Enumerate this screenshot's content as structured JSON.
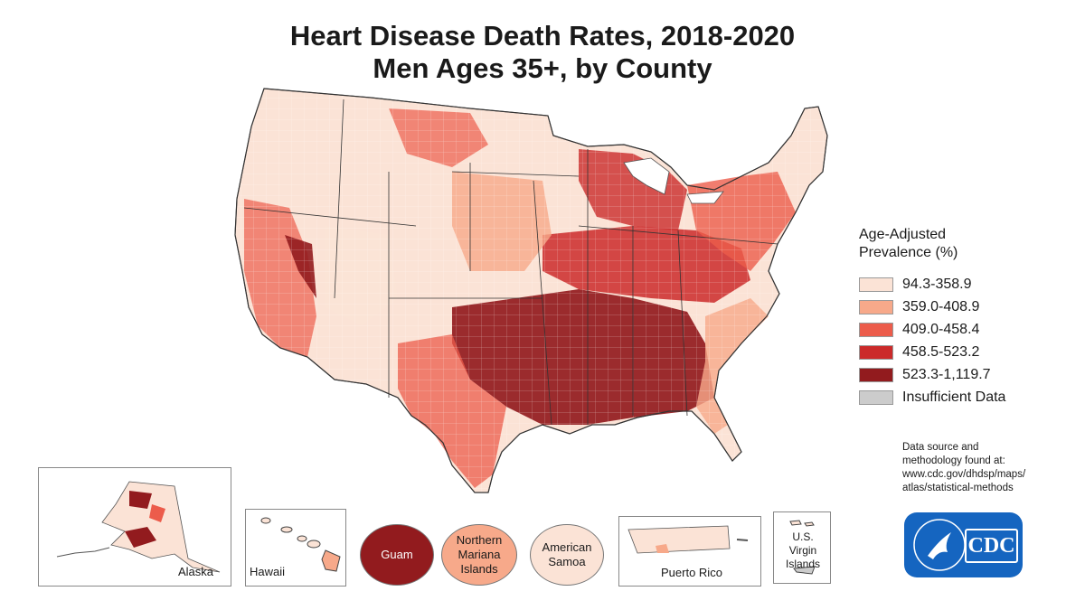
{
  "title": "Heart Disease Death Rates, 2018-2020",
  "subtitle": "Men Ages 35+, by County",
  "legend": {
    "heading_line1": "Age-Adjusted",
    "heading_line2": "Prevalence (%)",
    "items": [
      {
        "label": "94.3-358.9",
        "color": "#fbe3d6"
      },
      {
        "label": "359.0-408.9",
        "color": "#f7a98a"
      },
      {
        "label": "409.0-458.4",
        "color": "#ec5c4b"
      },
      {
        "label": "458.5-523.2",
        "color": "#cb2a2a"
      },
      {
        "label": "523.3-1,119.7",
        "color": "#921b1e"
      },
      {
        "label": "Insufficient Data",
        "color": "#cccccc"
      }
    ]
  },
  "source_note": {
    "line1": "Data source and",
    "line2": "methodology found at:",
    "line3": "www.cdc.gov/dhdsp/maps/",
    "line4": "atlas/statistical-methods"
  },
  "insets": {
    "alaska": "Alaska",
    "hawaii": "Hawaii",
    "puerto_rico": "Puerto Rico",
    "virgin_islands_line1": "U.S. Virgin",
    "virgin_islands_line2": "Islands"
  },
  "territories": {
    "guam": {
      "label": "Guam",
      "color": "#921b1e"
    },
    "northern_mariana_line1": "Northern",
    "northern_mariana_line2": "Mariana",
    "northern_mariana_line3": "Islands",
    "northern_mariana_color": "#f7a98a",
    "american_samoa_line1": "American",
    "american_samoa_line2": "Samoa",
    "american_samoa_color": "#fbe3d6"
  },
  "logo_text": "CDC"
}
